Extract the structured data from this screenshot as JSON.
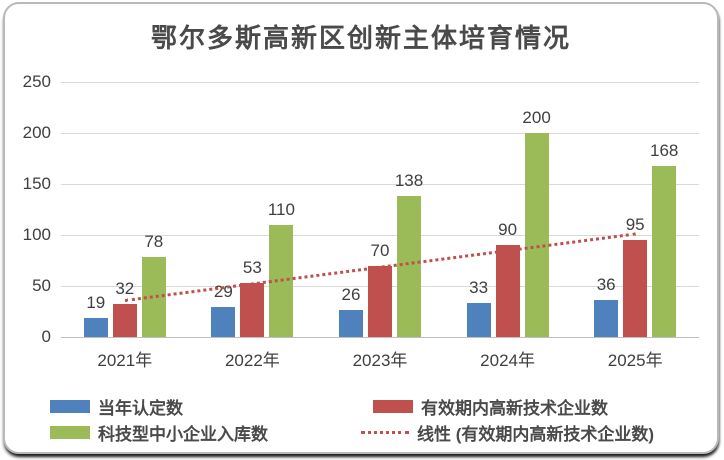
{
  "chart_data": {
    "type": "bar",
    "title": "鄂尔多斯高新区创新主体培育情况",
    "categories": [
      "2021年",
      "2022年",
      "2023年",
      "2024年",
      "2025年"
    ],
    "series": [
      {
        "name": "当年认定数",
        "color": "#4F81BD",
        "values": [
          19,
          29,
          26,
          33,
          36
        ]
      },
      {
        "name": "有效期内高新技术企业数",
        "color": "#C0504D",
        "values": [
          32,
          53,
          70,
          90,
          95
        ]
      },
      {
        "name": "科技型中小企业入库数",
        "color": "#9BBB59",
        "values": [
          78,
          110,
          138,
          200,
          168
        ]
      }
    ],
    "trendline": {
      "name": "线性 (有效期内高新技术企业数)",
      "color": "#C0504D",
      "style": "dotted",
      "start_value": 35.4,
      "end_value": 100.6
    },
    "xlabel": "",
    "ylabel": "",
    "ylim": [
      0,
      250
    ],
    "y_ticks": [
      0,
      50,
      100,
      150,
      200,
      250
    ],
    "grid": true,
    "legend_position": "bottom",
    "colors": {
      "gridline": "#d9d9d9",
      "axis_text": "#404040",
      "title_text": "#4a4a4a"
    }
  }
}
